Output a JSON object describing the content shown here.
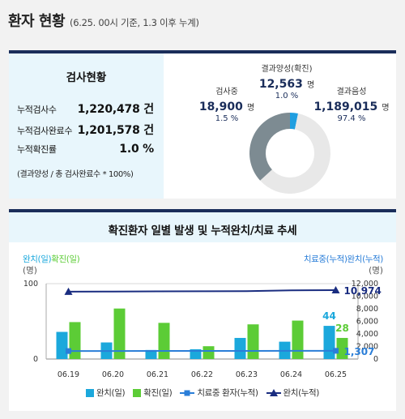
{
  "header": {
    "title": "환자 현황",
    "subtitle": "(6.25. 00시 기준, 1.3 이후 누계)"
  },
  "test_status": {
    "heading": "검사현황",
    "rows": [
      {
        "label": "누적검사수",
        "value": "1,220,478 건"
      },
      {
        "label": "누적검사완료수",
        "value": "1,201,578 건"
      },
      {
        "label": "누적확진률",
        "value": "1.0 %"
      }
    ],
    "note": "(결과양성 / 총 검사완료수 * 100%)"
  },
  "donut": {
    "testing": {
      "label": "검사중",
      "count": "18,900",
      "unit": "명",
      "percent": "1.5 %",
      "share": 1.5,
      "color": "#3fc0ea"
    },
    "positive": {
      "label": "결과양성(확진)",
      "count": "12,563",
      "unit": "명",
      "percent": "1.0 %",
      "share": 1.0,
      "color": "#1f9ee0"
    },
    "negative": {
      "label": "결과음성",
      "count": "1,189,015",
      "unit": "명",
      "percent": "97.4 %",
      "share": 97.4,
      "color": "#e8e8e8"
    },
    "ring_color": "#7d8b92"
  },
  "chart_panel": {
    "heading": "확진환자 일별 발생 및 누적완치/치료 추세",
    "left_axis_title_a": "완치(일)",
    "left_axis_title_b": "확진(일)",
    "left_axis_unit": "(명)",
    "right_axis_title": "치료중(누적)완치(누적)",
    "right_axis_unit": "(명)"
  },
  "legend": [
    {
      "label": "완치(일)",
      "kind": "box",
      "color": "#1ba8dc"
    },
    {
      "label": "확진(일)",
      "kind": "box",
      "color": "#5ccc36"
    },
    {
      "label": "치료중 환자(누적)",
      "kind": "line-square",
      "color": "#2a7ed8"
    },
    {
      "label": "완치(누적)",
      "kind": "line-triangle",
      "color": "#1a2d80"
    }
  ],
  "chart_data": {
    "type": "bar",
    "categories": [
      "06.19",
      "06.20",
      "06.21",
      "06.22",
      "06.23",
      "06.24",
      "06.25"
    ],
    "left_ylim": [
      0,
      100
    ],
    "left_ticks": [
      0,
      100
    ],
    "right_ylim": [
      0,
      12000
    ],
    "right_ticks": [
      "0",
      "2,000",
      "4,000",
      "6,000",
      "8,000",
      "10,000",
      "12,000"
    ],
    "series": [
      {
        "name": "완치(일)",
        "axis": "left",
        "kind": "bar",
        "color": "#1ba8dc",
        "values": [
          36,
          22,
          12,
          13,
          28,
          23,
          44
        ]
      },
      {
        "name": "확진(일)",
        "axis": "left",
        "kind": "bar",
        "color": "#5ccc36",
        "values": [
          49,
          67,
          48,
          17,
          46,
          51,
          28
        ]
      },
      {
        "name": "치료중 환자(누적)",
        "axis": "right",
        "kind": "line",
        "marker": "square",
        "color": "#2a7ed8",
        "values": [
          1270,
          1280,
          1285,
          1290,
          1295,
          1300,
          1307
        ]
      },
      {
        "name": "완치(누적)",
        "axis": "right",
        "kind": "line",
        "marker": "triangle",
        "color": "#1a2d80",
        "values": [
          10730,
          10750,
          10770,
          10785,
          10810,
          10930,
          10974
        ]
      }
    ],
    "data_labels": [
      {
        "series": 0,
        "index": 6,
        "text": "44",
        "color": "#1ba8dc"
      },
      {
        "series": 1,
        "index": 6,
        "text": "28",
        "color": "#5ccc36"
      },
      {
        "series": 2,
        "index": 6,
        "text": "1,307",
        "color": "#2a7ed8"
      },
      {
        "series": 3,
        "index": 6,
        "text": "10,974",
        "color": "#1a2d80"
      }
    ]
  }
}
